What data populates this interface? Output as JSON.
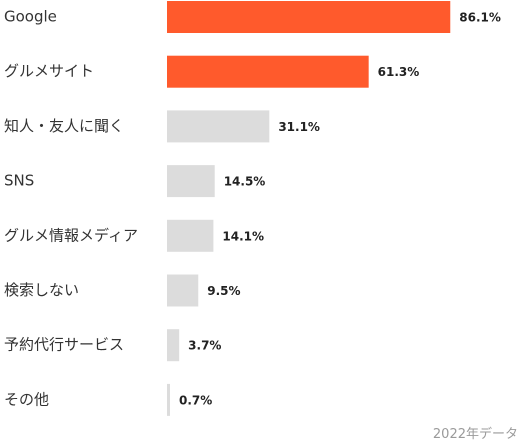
{
  "chart_data": {
    "type": "bar",
    "orientation": "horizontal",
    "categories": [
      "Google",
      "グルメサイト",
      "知人・友人に聞く",
      "SNS",
      "グルメ情報メディア",
      "検索しない",
      "予約代行サービス",
      "その他"
    ],
    "values": [
      86.1,
      61.3,
      31.1,
      14.5,
      14.1,
      9.5,
      3.7,
      0.7
    ],
    "value_labels": [
      "86.1%",
      "61.3%",
      "31.1%",
      "14.5%",
      "14.1%",
      "9.5%",
      "3.7%",
      "0.7%"
    ],
    "highlight_count": 2,
    "colors": {
      "highlight": "#FF5A2C",
      "default": "#DCDCDC",
      "label": "#333333",
      "value": "#222222"
    },
    "xlim": [
      0,
      100
    ],
    "grid": false,
    "legend": "none"
  },
  "footnote": "2022年データ"
}
